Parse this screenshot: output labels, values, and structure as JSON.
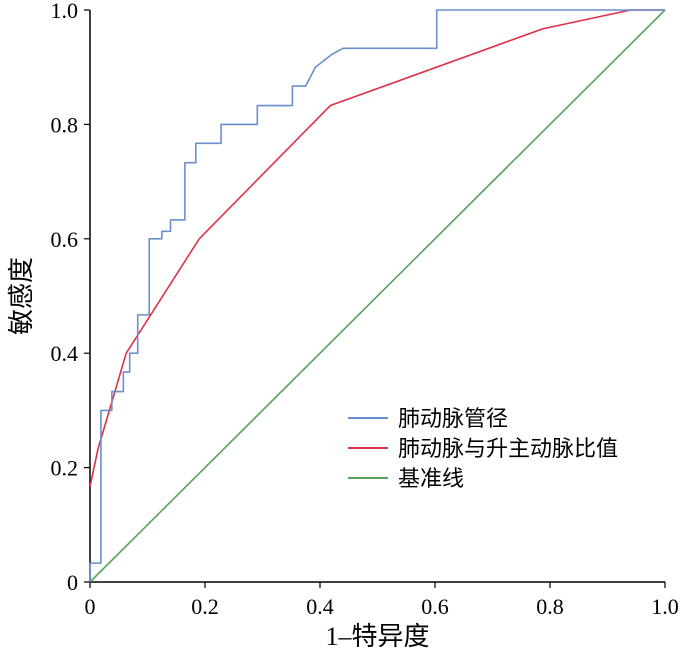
{
  "chart_data": {
    "type": "line",
    "title": "",
    "xlabel": "1–特异度",
    "ylabel": "敏感度",
    "xlim": [
      0,
      1
    ],
    "ylim": [
      0,
      1
    ],
    "x_ticks": [
      "0",
      "0.2",
      "0.4",
      "0.6",
      "0.8",
      "1.0"
    ],
    "y_ticks": [
      "0",
      "0.2",
      "0.4",
      "0.6",
      "0.8",
      "1.0"
    ],
    "grid": false,
    "legend": {
      "position": "bottom-right"
    },
    "series": [
      {
        "name": "肺动脉管径",
        "color": "#6a8fd0",
        "step": true,
        "points": [
          [
            0,
            0
          ],
          [
            0,
            0.033
          ],
          [
            0.019,
            0.033
          ],
          [
            0.019,
            0.3
          ],
          [
            0.038,
            0.3
          ],
          [
            0.038,
            0.333
          ],
          [
            0.058,
            0.333
          ],
          [
            0.058,
            0.367
          ],
          [
            0.069,
            0.367
          ],
          [
            0.069,
            0.4
          ],
          [
            0.083,
            0.4
          ],
          [
            0.083,
            0.467
          ],
          [
            0.103,
            0.467
          ],
          [
            0.103,
            0.6
          ],
          [
            0.125,
            0.6
          ],
          [
            0.125,
            0.613
          ],
          [
            0.14,
            0.613
          ],
          [
            0.14,
            0.633
          ],
          [
            0.165,
            0.633
          ],
          [
            0.165,
            0.733
          ],
          [
            0.184,
            0.733
          ],
          [
            0.184,
            0.767
          ],
          [
            0.228,
            0.767
          ],
          [
            0.228,
            0.8
          ],
          [
            0.291,
            0.8
          ],
          [
            0.291,
            0.833
          ],
          [
            0.352,
            0.833
          ],
          [
            0.352,
            0.867
          ],
          [
            0.375,
            0.867
          ],
          [
            0.392,
            0.9
          ],
          [
            0.42,
            0.922
          ],
          [
            0.44,
            0.933
          ],
          [
            0.603,
            0.933
          ],
          [
            0.603,
            1.0
          ],
          [
            1.0,
            1.0
          ]
        ]
      },
      {
        "name": "肺动脉与升主动脉比值",
        "color": "#e03048",
        "step": false,
        "points": [
          [
            0,
            0.167
          ],
          [
            0.014,
            0.233
          ],
          [
            0.063,
            0.4
          ],
          [
            0.19,
            0.6
          ],
          [
            0.418,
            0.833
          ],
          [
            0.787,
            0.967
          ],
          [
            0.94,
            1.0
          ],
          [
            1.0,
            1.0
          ]
        ]
      },
      {
        "name": "基准线",
        "color": "#5aa05a",
        "step": false,
        "points": [
          [
            0,
            0
          ],
          [
            1,
            1
          ]
        ]
      }
    ]
  }
}
